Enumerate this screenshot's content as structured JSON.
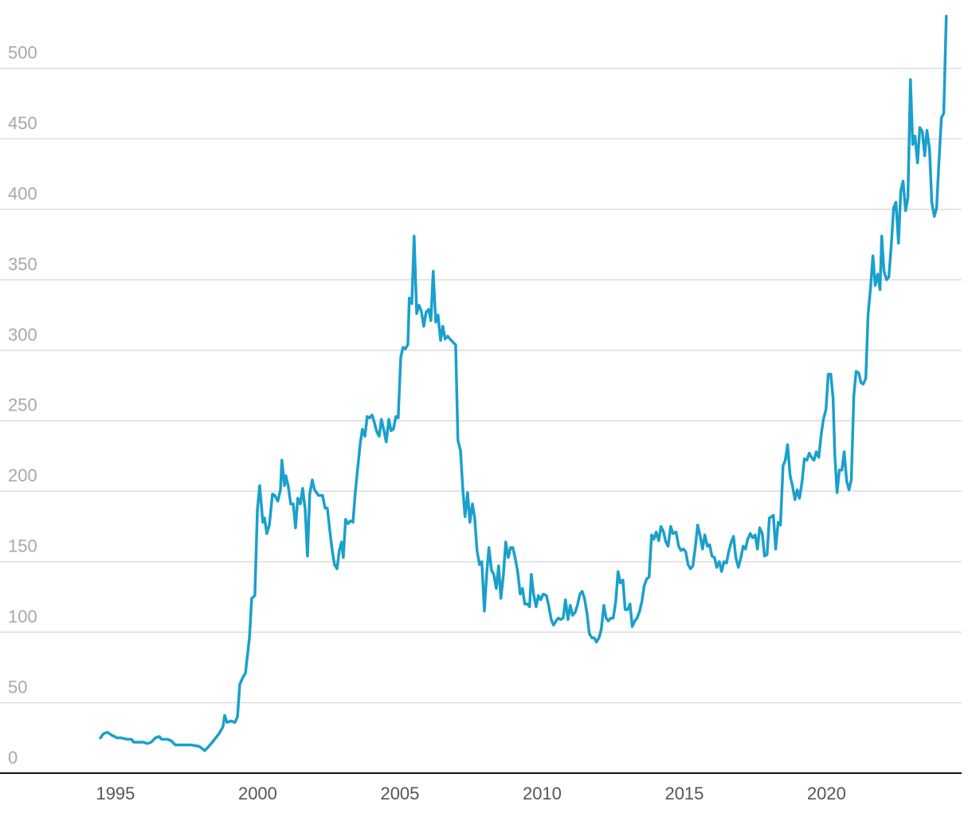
{
  "chart_data": {
    "type": "line",
    "color": "#1aa0cc",
    "grid": true,
    "xlim": [
      1990.94,
      2024.75
    ],
    "xticks": [
      1995,
      2000,
      2005,
      2010,
      2015,
      2020
    ],
    "ylim": [
      0,
      540
    ],
    "yticks": [
      0,
      50,
      100,
      150,
      200,
      250,
      300,
      350,
      400,
      450,
      500
    ],
    "x": [
      1994.47,
      1994.58,
      1994.72,
      1994.86,
      1995.06,
      1995.2,
      1995.42,
      1995.56,
      1995.64,
      1995.84,
      1995.98,
      1996.12,
      1996.26,
      1996.4,
      1996.54,
      1996.62,
      1996.82,
      1996.96,
      1997.1,
      1997.38,
      1997.66,
      1997.94,
      1998.14,
      1998.28,
      1998.45,
      1998.64,
      1998.78,
      1998.84,
      1998.92,
      1999.06,
      1999.2,
      1999.29,
      1999.37,
      1999.48,
      1999.57,
      1999.71,
      1999.79,
      1999.9,
      1999.99,
      2000.07,
      2000.18,
      2000.24,
      2000.32,
      2000.41,
      2000.52,
      2000.6,
      2000.71,
      2000.8,
      2000.85,
      2000.94,
      2000.99,
      2001.08,
      2001.16,
      2001.25,
      2001.33,
      2001.41,
      2001.5,
      2001.58,
      2001.67,
      2001.75,
      2001.83,
      2001.92,
      2002.0,
      2002.14,
      2002.28,
      2002.37,
      2002.45,
      2002.53,
      2002.62,
      2002.7,
      2002.79,
      2002.87,
      2002.95,
      2003.01,
      2003.09,
      2003.18,
      2003.26,
      2003.35,
      2003.43,
      2003.51,
      2003.6,
      2003.68,
      2003.77,
      2003.85,
      2003.93,
      2004.02,
      2004.1,
      2004.19,
      2004.27,
      2004.35,
      2004.44,
      2004.52,
      2004.61,
      2004.69,
      2004.77,
      2004.86,
      2004.94,
      2005.03,
      2005.11,
      2005.19,
      2005.28,
      2005.33,
      2005.42,
      2005.5,
      2005.59,
      2005.67,
      2005.75,
      2005.84,
      2005.92,
      2006.01,
      2006.09,
      2006.17,
      2006.26,
      2006.34,
      2006.43,
      2006.51,
      2006.59,
      2006.68,
      2006.76,
      2006.9,
      2006.96,
      2007.04,
      2007.13,
      2007.21,
      2007.29,
      2007.38,
      2007.46,
      2007.55,
      2007.63,
      2007.71,
      2007.8,
      2007.88,
      2007.97,
      2008.05,
      2008.13,
      2008.22,
      2008.3,
      2008.39,
      2008.47,
      2008.55,
      2008.64,
      2008.72,
      2008.81,
      2008.89,
      2008.97,
      2009.06,
      2009.14,
      2009.23,
      2009.31,
      2009.39,
      2009.48,
      2009.56,
      2009.62,
      2009.7,
      2009.79,
      2009.87,
      2009.95,
      2010.04,
      2010.15,
      2010.23,
      2010.32,
      2010.4,
      2010.49,
      2010.57,
      2010.65,
      2010.74,
      2010.82,
      2010.91,
      2010.99,
      2011.07,
      2011.16,
      2011.24,
      2011.33,
      2011.41,
      2011.49,
      2011.58,
      2011.66,
      2011.75,
      2011.83,
      2011.91,
      2012.0,
      2012.08,
      2012.17,
      2012.25,
      2012.33,
      2012.42,
      2012.5,
      2012.59,
      2012.67,
      2012.75,
      2012.84,
      2012.92,
      2013.01,
      2013.09,
      2013.17,
      2013.26,
      2013.34,
      2013.43,
      2013.51,
      2013.59,
      2013.68,
      2013.76,
      2013.85,
      2013.93,
      2014.01,
      2014.1,
      2014.18,
      2014.27,
      2014.35,
      2014.43,
      2014.52,
      2014.6,
      2014.71,
      2014.8,
      2014.88,
      2014.97,
      2015.05,
      2015.13,
      2015.22,
      2015.3,
      2015.39,
      2015.47,
      2015.55,
      2015.64,
      2015.72,
      2015.81,
      2015.89,
      2015.97,
      2016.06,
      2016.14,
      2016.23,
      2016.31,
      2016.39,
      2016.48,
      2016.56,
      2016.65,
      2016.73,
      2016.81,
      2016.9,
      2016.98,
      2017.07,
      2017.15,
      2017.23,
      2017.32,
      2017.4,
      2017.49,
      2017.57,
      2017.65,
      2017.74,
      2017.82,
      2017.91,
      2017.99,
      2018.07,
      2018.13,
      2018.21,
      2018.3,
      2018.38,
      2018.47,
      2018.55,
      2018.63,
      2018.72,
      2018.8,
      2018.89,
      2018.97,
      2019.05,
      2019.14,
      2019.22,
      2019.31,
      2019.39,
      2019.47,
      2019.56,
      2019.64,
      2019.73,
      2019.81,
      2019.89,
      2019.98,
      2020.06,
      2020.15,
      2020.23,
      2020.29,
      2020.37,
      2020.45,
      2020.54,
      2020.62,
      2020.71,
      2020.79,
      2020.87,
      2020.96,
      2021.04,
      2021.13,
      2021.21,
      2021.29,
      2021.38,
      2021.46,
      2021.55,
      2021.63,
      2021.71,
      2021.8,
      2021.88,
      2021.94,
      2022.02,
      2022.11,
      2022.19,
      2022.27,
      2022.36,
      2022.44,
      2022.53,
      2022.61,
      2022.69,
      2022.78,
      2022.86,
      2022.95,
      2023.03,
      2023.11,
      2023.2,
      2023.28,
      2023.37,
      2023.45,
      2023.53,
      2023.62,
      2023.7,
      2023.79,
      2023.87,
      2023.95,
      2024.04,
      2024.12,
      2024.21
    ],
    "values": [
      25,
      28,
      29,
      27,
      25,
      25,
      24,
      24,
      22,
      22,
      22,
      21,
      22,
      25,
      26,
      24,
      24,
      23,
      20,
      20,
      20,
      19,
      16,
      19,
      23,
      28,
      33,
      41,
      36,
      37,
      36,
      40,
      63,
      68,
      71,
      96,
      124,
      126,
      187,
      204,
      178,
      181,
      170,
      176,
      198,
      197,
      193,
      201,
      222,
      204,
      211,
      203,
      191,
      191,
      174,
      195,
      191,
      202,
      187,
      154,
      198,
      208,
      201,
      197,
      197,
      188,
      188,
      173,
      158,
      148,
      145,
      158,
      164,
      153,
      180,
      177,
      179,
      178,
      199,
      215,
      233,
      244,
      239,
      253,
      252,
      254,
      249,
      242,
      239,
      251,
      243,
      235,
      251,
      243,
      244,
      253,
      252,
      295,
      302,
      301,
      304,
      337,
      333,
      381,
      326,
      332,
      328,
      317,
      327,
      329,
      321,
      356,
      320,
      325,
      307,
      317,
      308,
      310,
      308,
      305,
      304,
      236,
      229,
      202,
      182,
      199,
      178,
      191,
      181,
      158,
      148,
      150,
      115,
      141,
      160,
      144,
      141,
      131,
      147,
      124,
      141,
      164,
      153,
      160,
      160,
      152,
      143,
      127,
      131,
      120,
      120,
      118,
      141,
      127,
      118,
      126,
      123,
      127,
      126,
      119,
      109,
      105,
      108,
      110,
      109,
      110,
      123,
      109,
      119,
      112,
      114,
      119,
      127,
      129,
      124,
      113,
      99,
      96,
      96,
      93,
      96,
      102,
      119,
      110,
      108,
      110,
      110,
      122,
      143,
      135,
      137,
      116,
      116,
      120,
      104,
      108,
      110,
      115,
      122,
      133,
      138,
      139,
      169,
      166,
      171,
      165,
      175,
      171,
      164,
      161,
      175,
      170,
      171,
      161,
      158,
      159,
      157,
      148,
      145,
      147,
      161,
      176,
      169,
      159,
      169,
      161,
      162,
      154,
      153,
      146,
      150,
      143,
      150,
      149,
      157,
      164,
      168,
      153,
      146,
      152,
      161,
      159,
      166,
      170,
      167,
      169,
      159,
      174,
      170,
      154,
      155,
      181,
      182,
      183,
      159,
      178,
      176,
      218,
      222,
      233,
      211,
      204,
      194,
      201,
      195,
      207,
      223,
      222,
      227,
      224,
      222,
      228,
      224,
      240,
      251,
      258,
      283,
      283,
      266,
      226,
      199,
      215,
      215,
      228,
      207,
      201,
      208,
      268,
      285,
      284,
      277,
      276,
      280,
      325,
      345,
      367,
      346,
      354,
      343,
      381,
      356,
      350,
      352,
      373,
      401,
      405,
      376,
      413,
      420,
      399,
      408,
      492,
      446,
      452,
      433,
      458,
      455,
      438,
      456,
      443,
      405,
      395,
      401,
      433,
      465,
      468,
      537
    ]
  }
}
